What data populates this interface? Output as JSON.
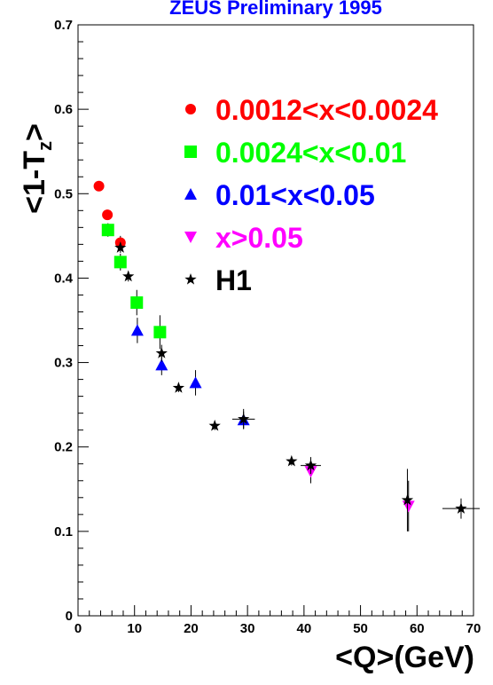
{
  "chart_data": {
    "type": "scatter",
    "title": "ZEUS Preliminary 1995",
    "xlabel": "<Q>(GeV)",
    "ylabel": "<1-T",
    "ylabel_sub": "z",
    "ylabel_end": ">",
    "xlim": [
      0,
      70
    ],
    "ylim": [
      0,
      0.7
    ],
    "x_ticks": [
      "0",
      "10",
      "20",
      "30",
      "40",
      "50",
      "60",
      "70"
    ],
    "y_ticks": [
      "0",
      "0.1",
      "0.2",
      "0.3",
      "0.4",
      "0.5",
      "0.6",
      "0.7"
    ],
    "grid": false,
    "legend_position": "top-right",
    "series": [
      {
        "name": "0.0012<x<0.0024",
        "color": "#ff0000",
        "marker": "circle",
        "points": [
          {
            "x": 3.7,
            "y": 0.509,
            "yerr": 0.005
          },
          {
            "x": 5.2,
            "y": 0.475,
            "yerr": 0.005
          },
          {
            "x": 7.5,
            "y": 0.442,
            "yerr": 0.008
          }
        ]
      },
      {
        "name": "0.0024<x<0.01",
        "color": "#00ff00",
        "marker": "square",
        "points": [
          {
            "x": 5.3,
            "y": 0.457,
            "yerr": 0.008
          },
          {
            "x": 7.5,
            "y": 0.419,
            "yerr": 0.01
          },
          {
            "x": 10.4,
            "y": 0.371,
            "yerr": 0.015
          },
          {
            "x": 14.5,
            "y": 0.336,
            "yerr": 0.02
          }
        ]
      },
      {
        "name": "0.01<x<0.05",
        "color": "#0000ff",
        "marker": "triangle-up",
        "points": [
          {
            "x": 10.5,
            "y": 0.338,
            "yerr": 0.015
          },
          {
            "x": 14.8,
            "y": 0.297,
            "yerr": 0.012
          },
          {
            "x": 20.8,
            "y": 0.276,
            "yerr": 0.015
          },
          {
            "x": 29.3,
            "y": 0.232,
            "yerr": 0.01
          }
        ]
      },
      {
        "name": "x>0.05",
        "color": "#ff00ff",
        "marker": "triangle-down",
        "points": [
          {
            "x": 41.2,
            "y": 0.171,
            "yerr": 0.014
          },
          {
            "x": 58.5,
            "y": 0.13,
            "yerr": 0.03
          }
        ]
      },
      {
        "name": "H1",
        "color": "#000000",
        "marker": "star",
        "points": [
          {
            "x": 7.5,
            "y": 0.436,
            "yerr": 0.006
          },
          {
            "x": 8.9,
            "y": 0.402,
            "yerr": 0.006
          },
          {
            "x": 14.8,
            "y": 0.311,
            "yerr": 0.01
          },
          {
            "x": 17.8,
            "y": 0.27,
            "yerr": 0.005
          },
          {
            "x": 24.2,
            "y": 0.225,
            "yerr": 0.005
          },
          {
            "x": 29.3,
            "y": 0.233,
            "yerr": 0.012,
            "xerr": 2.0
          },
          {
            "x": 37.8,
            "y": 0.183,
            "yerr": 0.005
          },
          {
            "x": 41.2,
            "y": 0.178,
            "yerr": 0.01,
            "xerr": 1.8
          },
          {
            "x": 58.3,
            "y": 0.137,
            "yerr": 0.037
          },
          {
            "x": 67.8,
            "y": 0.127,
            "yerr": 0.012,
            "xerr": 3.3
          }
        ]
      }
    ]
  }
}
